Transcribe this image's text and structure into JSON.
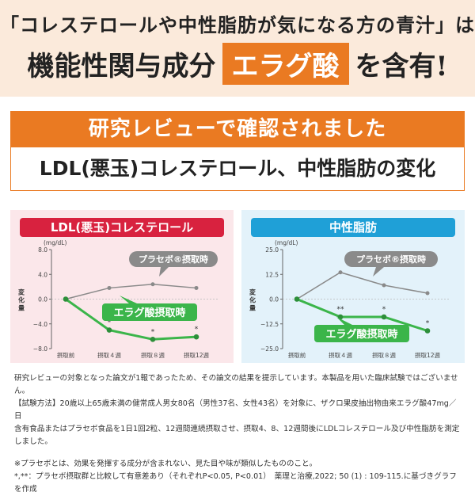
{
  "header": {
    "line1": "「コレステロールや中性脂肪が気になる方の青汁」は",
    "line2_pre": "機能性関与成分",
    "line2_highlight": "エラグ酸",
    "line2_post": "を含有!"
  },
  "banner": {
    "title": "研究レビューで確認されました"
  },
  "subhead": "LDL(悪玉)コレステロール、中性脂肪の変化",
  "colors": {
    "accent": "#ea7a22",
    "placebo": "#8a8a8a",
    "treatment": "#3bb54a",
    "ldl_title": "#d8223f",
    "tg_title": "#1fa0d7"
  },
  "chart_data": [
    {
      "type": "line",
      "title": "LDL(悪玉)コレステロール",
      "unit": "(mg/dL)",
      "ylabel": "変化量",
      "ylim": [
        -8.0,
        8.0
      ],
      "yticks": [
        "8.0",
        "4.0",
        "0.0",
        "−4.0",
        "−8.0"
      ],
      "ytick_values": [
        8,
        4,
        0,
        -4,
        -8
      ],
      "categories": [
        "摂取前",
        "摂取４週",
        "摂取８週",
        "摂取12週"
      ],
      "series": [
        {
          "name": "プラセボ®摂取時",
          "values": [
            0.0,
            1.8,
            2.4,
            1.8
          ]
        },
        {
          "name": "エラグ酸摂取時",
          "values": [
            0.0,
            -5.0,
            -6.5,
            -6.1
          ]
        }
      ],
      "significance": [
        "",
        "*",
        "*",
        "*"
      ]
    },
    {
      "type": "line",
      "title": "中性脂肪",
      "unit": "(mg/dL)",
      "ylabel": "変化量",
      "ylim": [
        -25.0,
        25.0
      ],
      "yticks": [
        "25.0",
        "12.5",
        "0.0",
        "−12.5",
        "−25.0"
      ],
      "ytick_values": [
        25,
        12.5,
        0,
        -12.5,
        -25
      ],
      "categories": [
        "摂取前",
        "摂取４週",
        "摂取８週",
        "摂取12週"
      ],
      "series": [
        {
          "name": "プラセボ®摂取時",
          "values": [
            0.0,
            13.5,
            7.0,
            3.0
          ]
        },
        {
          "name": "エラグ酸摂取時",
          "values": [
            0.0,
            -9.0,
            -9.0,
            -16.0
          ]
        }
      ],
      "significance": [
        "",
        "**",
        "*",
        "*"
      ]
    }
  ],
  "notes": {
    "line1": "研究レビューの対象となった論文が1報であったため、その論文の結果を提示しています。本製品を用いた臨床試験ではございません。",
    "line2": "【試験方法】20歳以上65歳未満の健常成人男女80名（男性37名、女性43名）を対象に、ザクロ果皮抽出物由来エラグ酸47mg／日",
    "line3": "含有食品またはプラセボ食品を1日1回2粒、12週間連続摂取させ、摂取4、8、12週間後にLDLコレステロール及び中性脂肪を測定",
    "line4": "しました。",
    "line5": "※プラセボとは、効果を発揮する成分が含まれない、見た目や味が類似したもののこと。",
    "line6": "*,**：プラセボ摂取群と比較して有意差あり（それぞれP<0.05, P<0.01）　薬理と治療,2022; 50 (1) : 109-115.に基づきグラフを作成"
  }
}
